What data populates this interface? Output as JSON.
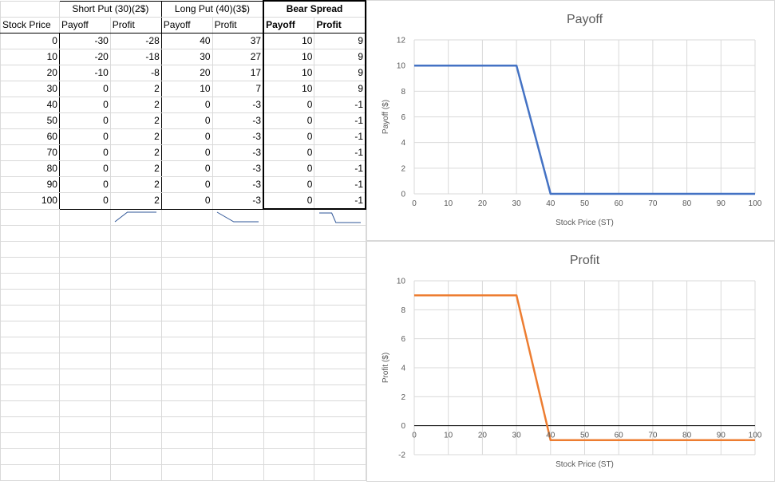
{
  "table": {
    "groups": [
      {
        "label": "Short Put (30)(2$)"
      },
      {
        "label": "Long Put (40)(3$)"
      },
      {
        "label": "Bear Spread"
      }
    ],
    "columns": [
      "Stock Price",
      "Payoff",
      "Profit",
      "Payoff",
      "Profit",
      "Payoff",
      "Profit"
    ],
    "rows": [
      [
        0,
        -30,
        -28,
        40,
        37,
        10,
        9
      ],
      [
        10,
        -20,
        -18,
        30,
        27,
        10,
        9
      ],
      [
        20,
        -10,
        -8,
        20,
        17,
        10,
        9
      ],
      [
        30,
        0,
        2,
        10,
        7,
        10,
        9
      ],
      [
        40,
        0,
        2,
        0,
        -3,
        0,
        -1
      ],
      [
        50,
        0,
        2,
        0,
        -3,
        0,
        -1
      ],
      [
        60,
        0,
        2,
        0,
        -3,
        0,
        -1
      ],
      [
        70,
        0,
        2,
        0,
        -3,
        0,
        -1
      ],
      [
        80,
        0,
        2,
        0,
        -3,
        0,
        -1
      ],
      [
        90,
        0,
        2,
        0,
        -3,
        0,
        -1
      ],
      [
        100,
        0,
        2,
        0,
        -3,
        0,
        -1
      ]
    ],
    "sparklines": [
      {
        "column": 2,
        "values": [
          -28,
          -18,
          -8,
          2,
          2,
          2,
          2,
          2,
          2,
          2,
          2
        ],
        "color": "#2e5597"
      },
      {
        "column": 4,
        "values": [
          37,
          27,
          17,
          7,
          -3,
          -3,
          -3,
          -3,
          -3,
          -3,
          -3
        ],
        "color": "#2e5597"
      },
      {
        "column": 6,
        "values": [
          9,
          9,
          9,
          9,
          -1,
          -1,
          -1,
          -1,
          -1,
          -1,
          -1
        ],
        "color": "#2e5597"
      }
    ]
  },
  "chart_data": [
    {
      "type": "line",
      "title": "Payoff",
      "xlabel": "Stock Price (ST)",
      "ylabel": "Payoff ($)",
      "x": [
        0,
        10,
        20,
        30,
        40,
        50,
        60,
        70,
        80,
        90,
        100
      ],
      "series": [
        {
          "values": [
            10,
            10,
            10,
            10,
            0,
            0,
            0,
            0,
            0,
            0,
            0
          ],
          "color": "#4472c4"
        }
      ],
      "xlim": [
        0,
        100
      ],
      "ylim": [
        0,
        12
      ],
      "xticks": [
        0,
        10,
        20,
        30,
        40,
        50,
        60,
        70,
        80,
        90,
        100
      ],
      "yticks": [
        0,
        2,
        4,
        6,
        8,
        10,
        12
      ],
      "grid": true
    },
    {
      "type": "line",
      "title": "Profit",
      "xlabel": "Stock Price (ST)",
      "ylabel": "Profit ($)",
      "x": [
        0,
        10,
        20,
        30,
        40,
        50,
        60,
        70,
        80,
        90,
        100
      ],
      "series": [
        {
          "values": [
            9,
            9,
            9,
            9,
            -1,
            -1,
            -1,
            -1,
            -1,
            -1,
            -1
          ],
          "color": "#ed7d31"
        }
      ],
      "xlim": [
        0,
        100
      ],
      "ylim": [
        -2,
        10
      ],
      "xticks": [
        0,
        10,
        20,
        30,
        40,
        50,
        60,
        70,
        80,
        90,
        100
      ],
      "yticks": [
        -2,
        0,
        2,
        4,
        6,
        8,
        10
      ],
      "grid": true
    }
  ]
}
